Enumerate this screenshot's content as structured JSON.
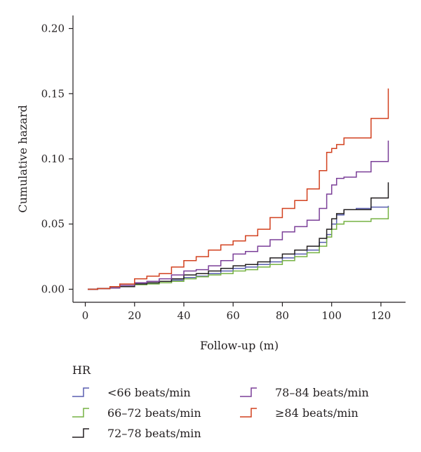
{
  "chart_data": {
    "type": "line",
    "xlabel": "Follow-up (m)",
    "ylabel": "Cumulative hazard",
    "xlim": [
      -5,
      130
    ],
    "ylim": [
      -0.01,
      0.21
    ],
    "xticks": [
      "0",
      "20",
      "40",
      "60",
      "80",
      "100",
      "120"
    ],
    "yticks": [
      "0.00",
      "0.05",
      "0.10",
      "0.15",
      "0.20"
    ],
    "legend_title": "HR",
    "legend_position": "bottom",
    "step": true,
    "series": [
      {
        "name": "<66 beats/min",
        "color": "#5a5fb0",
        "points": [
          [
            1,
            0
          ],
          [
            5,
            0.0005
          ],
          [
            10,
            0.001
          ],
          [
            14,
            0.002
          ],
          [
            20,
            0.004
          ],
          [
            25,
            0.0045
          ],
          [
            30,
            0.005
          ],
          [
            35,
            0.007
          ],
          [
            40,
            0.009
          ],
          [
            45,
            0.01
          ],
          [
            50,
            0.012
          ],
          [
            55,
            0.014
          ],
          [
            60,
            0.016
          ],
          [
            65,
            0.017
          ],
          [
            70,
            0.019
          ],
          [
            75,
            0.021
          ],
          [
            80,
            0.024
          ],
          [
            85,
            0.027
          ],
          [
            90,
            0.03
          ],
          [
            95,
            0.036
          ],
          [
            98,
            0.042
          ],
          [
            100,
            0.05
          ],
          [
            102,
            0.057
          ],
          [
            105,
            0.061
          ],
          [
            110,
            0.062
          ],
          [
            116,
            0.063
          ],
          [
            123,
            0.064
          ]
        ]
      },
      {
        "name": "66–72 beats/min",
        "color": "#77b243",
        "points": [
          [
            1,
            0
          ],
          [
            5,
            0.0005
          ],
          [
            10,
            0.001
          ],
          [
            14,
            0.002
          ],
          [
            20,
            0.0035
          ],
          [
            25,
            0.004
          ],
          [
            30,
            0.005
          ],
          [
            35,
            0.006
          ],
          [
            40,
            0.008
          ],
          [
            45,
            0.0095
          ],
          [
            50,
            0.011
          ],
          [
            55,
            0.012
          ],
          [
            60,
            0.014
          ],
          [
            65,
            0.015
          ],
          [
            70,
            0.017
          ],
          [
            75,
            0.019
          ],
          [
            80,
            0.022
          ],
          [
            85,
            0.025
          ],
          [
            90,
            0.028
          ],
          [
            95,
            0.033
          ],
          [
            98,
            0.04
          ],
          [
            100,
            0.046
          ],
          [
            102,
            0.05
          ],
          [
            105,
            0.052
          ],
          [
            110,
            0.052
          ],
          [
            116,
            0.054
          ],
          [
            123,
            0.063
          ]
        ]
      },
      {
        "name": "72–78 beats/min",
        "color": "#231f20",
        "points": [
          [
            1,
            0
          ],
          [
            5,
            0.0005
          ],
          [
            10,
            0.001
          ],
          [
            14,
            0.002
          ],
          [
            20,
            0.004
          ],
          [
            25,
            0.005
          ],
          [
            30,
            0.006
          ],
          [
            35,
            0.008
          ],
          [
            40,
            0.011
          ],
          [
            45,
            0.012
          ],
          [
            50,
            0.014
          ],
          [
            55,
            0.016
          ],
          [
            60,
            0.018
          ],
          [
            65,
            0.019
          ],
          [
            70,
            0.021
          ],
          [
            75,
            0.024
          ],
          [
            80,
            0.027
          ],
          [
            85,
            0.03
          ],
          [
            90,
            0.033
          ],
          [
            95,
            0.039
          ],
          [
            98,
            0.046
          ],
          [
            100,
            0.054
          ],
          [
            102,
            0.058
          ],
          [
            105,
            0.061
          ],
          [
            110,
            0.061
          ],
          [
            116,
            0.07
          ],
          [
            123,
            0.082
          ]
        ]
      },
      {
        "name": "78–84 beats/min",
        "color": "#7b3f98",
        "points": [
          [
            1,
            0
          ],
          [
            5,
            0.0005
          ],
          [
            10,
            0.001
          ],
          [
            14,
            0.003
          ],
          [
            20,
            0.005
          ],
          [
            25,
            0.006
          ],
          [
            30,
            0.008
          ],
          [
            35,
            0.011
          ],
          [
            40,
            0.014
          ],
          [
            45,
            0.015
          ],
          [
            50,
            0.018
          ],
          [
            55,
            0.022
          ],
          [
            60,
            0.027
          ],
          [
            65,
            0.029
          ],
          [
            70,
            0.033
          ],
          [
            75,
            0.038
          ],
          [
            80,
            0.044
          ],
          [
            85,
            0.048
          ],
          [
            90,
            0.053
          ],
          [
            95,
            0.062
          ],
          [
            98,
            0.073
          ],
          [
            100,
            0.08
          ],
          [
            102,
            0.085
          ],
          [
            105,
            0.086
          ],
          [
            110,
            0.09
          ],
          [
            116,
            0.098
          ],
          [
            123,
            0.114
          ]
        ]
      },
      {
        "name": "≥84 beats/min",
        "color": "#d2411f",
        "points": [
          [
            1,
            0
          ],
          [
            5,
            0.0005
          ],
          [
            10,
            0.002
          ],
          [
            14,
            0.004
          ],
          [
            20,
            0.008
          ],
          [
            25,
            0.01
          ],
          [
            30,
            0.012
          ],
          [
            35,
            0.017
          ],
          [
            40,
            0.022
          ],
          [
            45,
            0.025
          ],
          [
            50,
            0.03
          ],
          [
            55,
            0.034
          ],
          [
            60,
            0.037
          ],
          [
            65,
            0.041
          ],
          [
            70,
            0.046
          ],
          [
            75,
            0.055
          ],
          [
            80,
            0.062
          ],
          [
            85,
            0.068
          ],
          [
            90,
            0.077
          ],
          [
            95,
            0.091
          ],
          [
            98,
            0.105
          ],
          [
            100,
            0.108
          ],
          [
            102,
            0.111
          ],
          [
            105,
            0.116
          ],
          [
            110,
            0.116
          ],
          [
            116,
            0.131
          ],
          [
            123,
            0.154
          ]
        ]
      }
    ]
  }
}
